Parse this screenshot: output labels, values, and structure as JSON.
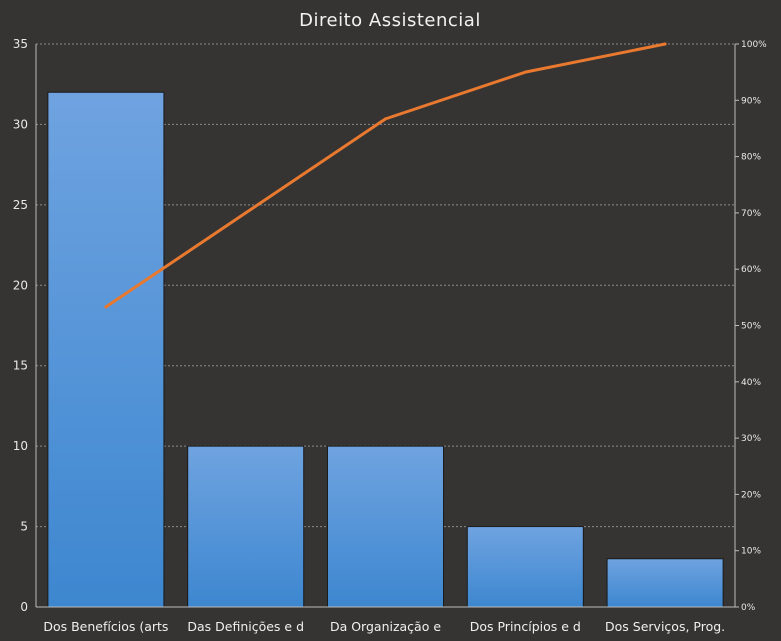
{
  "chart_data": {
    "type": "bar",
    "title": "Direito Assistencial",
    "xlabel": "",
    "ylabel": "",
    "categories": [
      "Dos Benefícios (arts",
      "Das Definições e d",
      "Da Organização e",
      "Dos Princípios e d",
      "Dos Serviços, Prog."
    ],
    "series": [
      {
        "type": "bar",
        "values": [
          32,
          10,
          10,
          5,
          3
        ]
      },
      {
        "type": "line",
        "axis": "right",
        "values": [
          53.3,
          70.0,
          86.7,
          95.0,
          100.0
        ]
      }
    ],
    "ylim": [
      0,
      35
    ],
    "yticks": [
      0,
      5,
      10,
      15,
      20,
      25,
      30,
      35
    ],
    "y2lim": [
      0,
      100
    ],
    "y2ticks": [
      "0%",
      "10%",
      "20%",
      "30%",
      "40%",
      "50%",
      "60%",
      "70%",
      "80%",
      "90%",
      "100%"
    ],
    "grid": true,
    "legend": "none",
    "colors": {
      "background": "#353433",
      "bar_top": "#6fa3e0",
      "bar_bottom": "#3d87d0",
      "line": "#e8792f",
      "grid": "#8a8a8a",
      "axis": "#bdbdbd"
    }
  }
}
